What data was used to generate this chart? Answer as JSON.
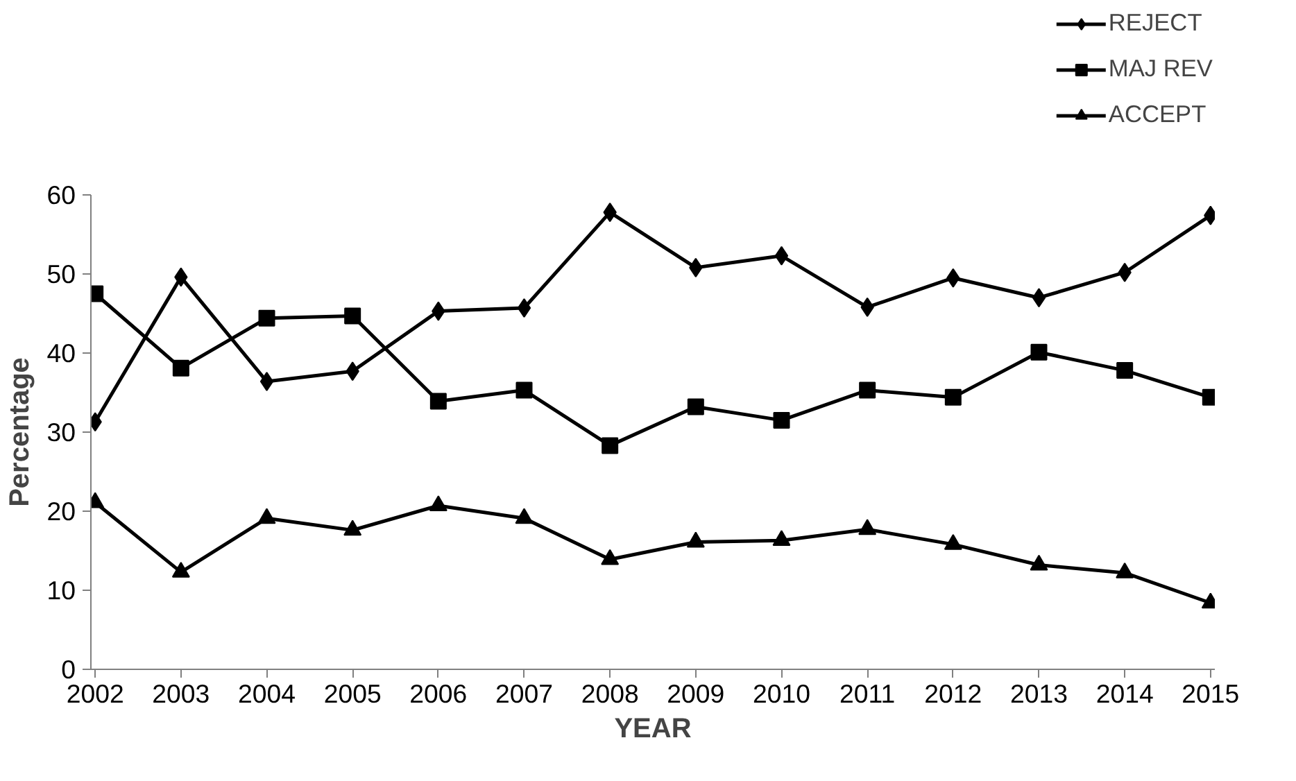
{
  "chart_data": {
    "type": "line",
    "xlabel": "YEAR",
    "ylabel": "Percentage",
    "categories": [
      "2002",
      "2003",
      "2004",
      "2005",
      "2006",
      "2007",
      "2008",
      "2009",
      "2010",
      "2011",
      "2012",
      "2013",
      "2014",
      "2015"
    ],
    "ylim": [
      0,
      60
    ],
    "yticks": [
      0,
      10,
      20,
      30,
      40,
      50,
      60
    ],
    "grid": false,
    "legend": "top right",
    "line_style": "solid",
    "series": [
      {
        "name": "REJECT",
        "color": "#000000",
        "marker": "diamond",
        "values": [
          31.3,
          49.6,
          36.4,
          37.7,
          45.3,
          45.7,
          57.8,
          50.8,
          52.3,
          45.8,
          49.5,
          47.0,
          50.2,
          57.4
        ]
      },
      {
        "name": "MAJ REV",
        "color": "#000000",
        "marker": "square",
        "values": [
          47.5,
          38.1,
          44.4,
          44.7,
          33.9,
          35.3,
          28.3,
          33.2,
          31.5,
          35.3,
          34.4,
          40.1,
          37.8,
          34.4
        ]
      },
      {
        "name": "ACCEPT",
        "color": "#000000",
        "marker": "triangle",
        "values": [
          21.1,
          12.3,
          19.1,
          17.6,
          20.7,
          19.1,
          13.9,
          16.1,
          16.3,
          17.7,
          15.8,
          13.2,
          12.2,
          8.4
        ]
      }
    ]
  }
}
